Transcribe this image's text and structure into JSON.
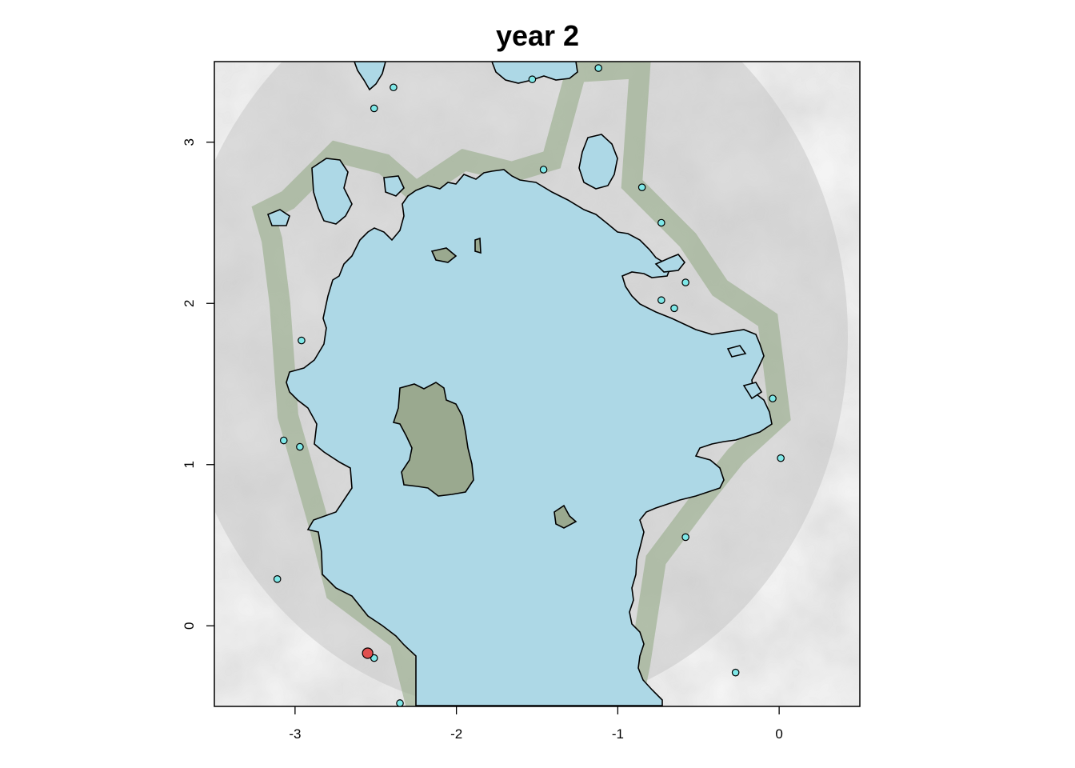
{
  "chart_data": {
    "type": "scatter",
    "title": "year 2",
    "xlabel": "",
    "ylabel": "",
    "xlim": [
      -3.5,
      0.5
    ],
    "ylim": [
      -0.5,
      3.5
    ],
    "x_ticks": [
      "-3",
      "-2",
      "-1",
      "0"
    ],
    "y_ticks": [
      "0",
      "1",
      "2",
      "3"
    ],
    "x_tick_values": [
      -3,
      -2,
      -1,
      0
    ],
    "y_tick_values": [
      0,
      1,
      2,
      3
    ],
    "grid": false,
    "background": "grayscale raster with light-blue water region outlined in black and green-tinted shoreline",
    "colors": {
      "water": "#add8e6",
      "land_light": "#f5f5f5",
      "land_dark": "#bdbdbd",
      "shore": "#8fa882",
      "point_cyan": "#7fe8e8",
      "point_red": "#e0504f",
      "outline": "#000000"
    },
    "series": [
      {
        "color": "cyan",
        "points": [
          [
            -2.39,
            3.34
          ],
          [
            -2.51,
            3.21
          ],
          [
            -1.53,
            3.39
          ],
          [
            -1.12,
            3.46
          ],
          [
            -1.46,
            2.83
          ],
          [
            -0.85,
            2.72
          ],
          [
            -0.73,
            2.5
          ],
          [
            -0.58,
            2.13
          ],
          [
            -0.73,
            2.02
          ],
          [
            -0.65,
            1.97
          ],
          [
            -2.96,
            1.77
          ],
          [
            -0.04,
            1.41
          ],
          [
            -3.07,
            1.15
          ],
          [
            -2.97,
            1.11
          ],
          [
            0.01,
            1.04
          ],
          [
            -0.58,
            0.55
          ],
          [
            -3.11,
            0.29
          ],
          [
            -0.27,
            -0.29
          ],
          [
            -2.51,
            -0.2
          ],
          [
            -2.35,
            -0.48
          ]
        ]
      },
      {
        "color": "red",
        "points": [
          [
            -2.55,
            -0.17
          ]
        ]
      }
    ]
  }
}
